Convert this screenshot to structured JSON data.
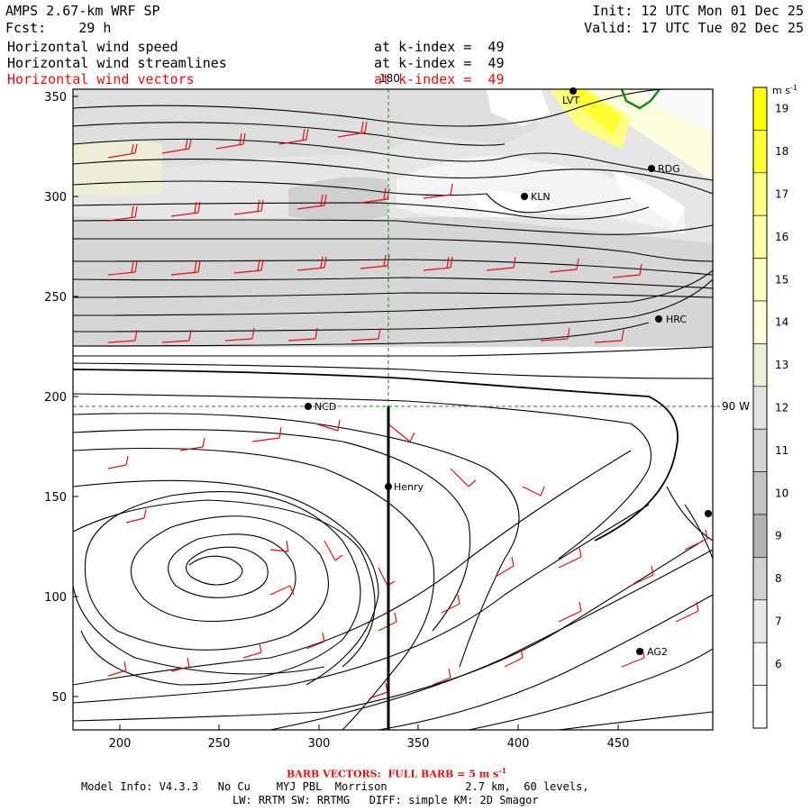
{
  "header": {
    "model_title": "AMPS 2.67-km WRF SP",
    "init": "Init: 12 UTC Mon 01 Dec 25",
    "forecast_label": "Fcst:",
    "forecast_hours": "29 h",
    "valid": "Valid: 17 UTC Tue 02 Dec 25",
    "fields": [
      {
        "name": "Horizontal wind speed",
        "level": "at k-index =  49",
        "color": "#000000"
      },
      {
        "name": "Horizontal wind streamlines",
        "level": "at k-index =  49",
        "color": "#000000"
      },
      {
        "name": "Horizontal wind vectors",
        "level": "at k-index =  49",
        "color": "#e01010"
      }
    ]
  },
  "map": {
    "x_ticks": [
      "200",
      "250",
      "300",
      "350",
      "400",
      "450"
    ],
    "y_ticks": [
      "350",
      "300",
      "250",
      "200",
      "150",
      "100",
      "50"
    ],
    "meridian_label": "180",
    "parallel_label": "90 W",
    "stations": [
      {
        "id": "LVT",
        "label": "LVT"
      },
      {
        "id": "RDG",
        "label": "RDG"
      },
      {
        "id": "KLN",
        "label": "KLN"
      },
      {
        "id": "HRC",
        "label": "HRC"
      },
      {
        "id": "NCD",
        "label": "NCD"
      },
      {
        "id": "HENRY",
        "label": "Henry"
      },
      {
        "id": "AG2",
        "label": "AG2"
      },
      {
        "id": "EDGE",
        "label": ""
      }
    ]
  },
  "colorbar": {
    "unit": "m s",
    "unit_exp": "-1",
    "levels": [
      "19",
      "18",
      "17",
      "16",
      "15",
      "14",
      "13",
      "12",
      "11",
      "10",
      "9",
      "8",
      "7",
      "6"
    ],
    "colors": [
      "#ffff00",
      "#ffff33",
      "#ffff80",
      "#ffffa8",
      "#ffffc0",
      "#fdfdd8",
      "#eeeedd",
      "#e2e2e2",
      "#d2d2d2",
      "#c4c4c4",
      "#b4b4b4",
      "#d0d0d0",
      "#e8e8e8",
      "#f8f8f8"
    ]
  },
  "footer": {
    "barb_label": "BARB VECTORS:  FULL BARB = 5 m s",
    "barb_exp": "-1",
    "model_info_1": "Model Info: V4.3.3   No Cu    MYJ PBL  Morrison            2.7 km,  60 levels,",
    "model_info_2": "LW: RRTM SW: RRTMG   DIFF: simple KM: 2D Smagor"
  }
}
